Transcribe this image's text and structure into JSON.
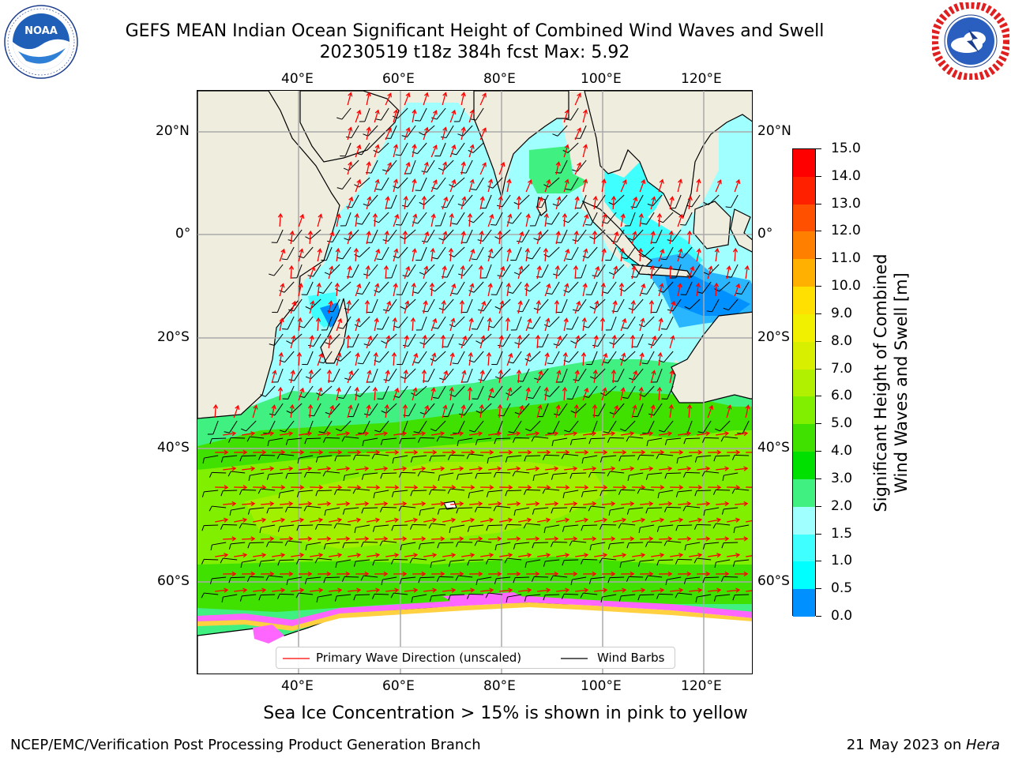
{
  "title": {
    "line1": "GEFS MEAN Indian Ocean Significant Height of Combined Wind Waves and Swell",
    "line2": "20230519 t18z 384h fcst    Max: 5.92"
  },
  "logos": {
    "left": {
      "icon": "noaa-logo-icon",
      "text": "NOAA",
      "ring_text": "NATIONAL OCEANIC AND ATMOSPHERIC ADMINISTRATION · U.S. DEPARTMENT OF COMMERCE"
    },
    "right": {
      "icon": "nws-logo-icon",
      "ring_text": "NATIONAL WEATHER SERVICE"
    }
  },
  "map": {
    "region": "Indian Ocean",
    "lon_ticks": [
      "40°E",
      "60°E",
      "80°E",
      "100°E",
      "120°E"
    ],
    "lat_ticks_left": [
      "20°N",
      "0°",
      "20°S",
      "40°S",
      "60°S"
    ],
    "lat_ticks_right": [
      "20°N",
      "0°",
      "20°S",
      "40°S",
      "60°S"
    ],
    "legend": {
      "wave_direction": "Primary Wave Direction (unscaled)",
      "wind_barbs": "Wind Barbs"
    },
    "colors": {
      "land": "#efedde",
      "ice": "#ffffff",
      "arrow": "#ff0000",
      "barb": "#000000",
      "grid": "#aaaaaa"
    }
  },
  "colorbar": {
    "label_line1": "Significant Height of Combined",
    "label_line2": "Wind Waves and Swell [m]",
    "ticks": [
      "15.0",
      "14.0",
      "13.0",
      "12.0",
      "11.0",
      "10.0",
      "9.0",
      "8.0",
      "7.0",
      "6.0",
      "5.0",
      "4.0",
      "3.0",
      "2.0",
      "1.5",
      "1.0",
      "0.5",
      "0.0"
    ],
    "colors": [
      "#ff0000",
      "#ff2000",
      "#ff5000",
      "#ff8000",
      "#ffb000",
      "#ffe000",
      "#f0f000",
      "#d8f000",
      "#b0f000",
      "#80f000",
      "#40e000",
      "#00e000",
      "#40f080",
      "#a0ffff",
      "#40ffff",
      "#00ffff",
      "#0090ff",
      "#0000ff"
    ]
  },
  "caption": "Sea Ice Concentration > 15% is shown in pink to yellow",
  "footer": {
    "left": "NCEP/EMC/Verification Post Processing Product Generation Branch",
    "date": "21 May 2023 on ",
    "host": "Hera"
  }
}
